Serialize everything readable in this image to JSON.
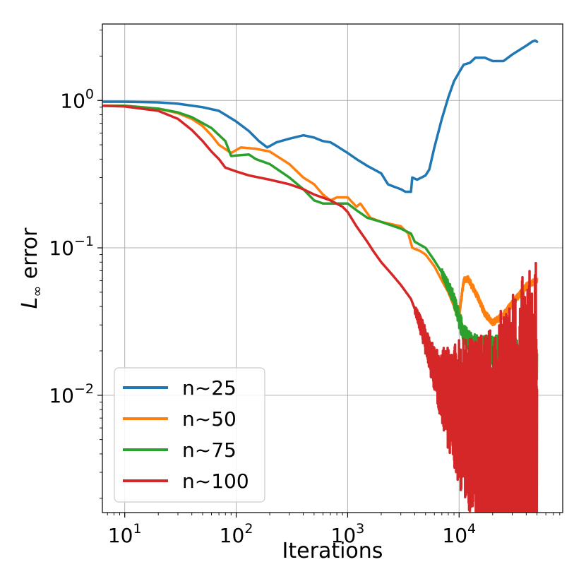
{
  "chart_data": {
    "type": "line",
    "xlabel": "Iterations",
    "ylabel": {
      "base": "L",
      "subscript": "∞",
      "suffix": " error"
    },
    "xscale": "log",
    "yscale": "log",
    "xlim": [
      6.3,
      85000
    ],
    "ylim": [
      0.0016,
      3.3
    ],
    "grid": true,
    "legend_position": "lower-left",
    "x_ticks": [
      {
        "value": 10,
        "base": "10",
        "exp": "1"
      },
      {
        "value": 100,
        "base": "10",
        "exp": "2"
      },
      {
        "value": 1000,
        "base": "10",
        "exp": "3"
      },
      {
        "value": 10000,
        "base": "10",
        "exp": "4"
      }
    ],
    "y_ticks": [
      {
        "value": 1,
        "base": "10",
        "exp": "0"
      },
      {
        "value": 0.1,
        "base": "10",
        "exp": "−1"
      },
      {
        "value": 0.01,
        "base": "10",
        "exp": "−2"
      }
    ],
    "series": [
      {
        "name": "n~25",
        "color": "#1f77b4",
        "points": [
          [
            6.5,
            0.98
          ],
          [
            10,
            0.98
          ],
          [
            20,
            0.97
          ],
          [
            30,
            0.95
          ],
          [
            50,
            0.9
          ],
          [
            70,
            0.85
          ],
          [
            100,
            0.72
          ],
          [
            130,
            0.62
          ],
          [
            160,
            0.53
          ],
          [
            190,
            0.48
          ],
          [
            230,
            0.52
          ],
          [
            300,
            0.55
          ],
          [
            400,
            0.58
          ],
          [
            450,
            0.57
          ],
          [
            500,
            0.56
          ],
          [
            600,
            0.53
          ],
          [
            700,
            0.52
          ],
          [
            800,
            0.49
          ],
          [
            1000,
            0.44
          ],
          [
            1200,
            0.4
          ],
          [
            1500,
            0.36
          ],
          [
            2000,
            0.32
          ],
          [
            2300,
            0.27
          ],
          [
            2600,
            0.26
          ],
          [
            3000,
            0.25
          ],
          [
            3300,
            0.24
          ],
          [
            3700,
            0.24
          ],
          [
            3800,
            0.3
          ],
          [
            4200,
            0.29
          ],
          [
            4600,
            0.3
          ],
          [
            5000,
            0.31
          ],
          [
            5400,
            0.34
          ],
          [
            6000,
            0.48
          ],
          [
            7000,
            0.75
          ],
          [
            8000,
            1.05
          ],
          [
            9000,
            1.35
          ],
          [
            10000,
            1.55
          ],
          [
            11000,
            1.75
          ],
          [
            12500,
            1.8
          ],
          [
            14000,
            1.95
          ],
          [
            17000,
            1.95
          ],
          [
            20000,
            1.85
          ],
          [
            25000,
            1.85
          ],
          [
            30000,
            2.05
          ],
          [
            40000,
            2.35
          ],
          [
            45000,
            2.5
          ],
          [
            48000,
            2.55
          ],
          [
            50000,
            2.5
          ]
        ]
      },
      {
        "name": "n~50",
        "color": "#ff7f0e",
        "noise": [
          [
            9000,
            1.0,
            0.04
          ],
          [
            20000,
            1.0,
            0.04
          ]
        ],
        "points": [
          [
            6.5,
            0.92
          ],
          [
            10,
            0.92
          ],
          [
            20,
            0.88
          ],
          [
            30,
            0.82
          ],
          [
            40,
            0.75
          ],
          [
            50,
            0.67
          ],
          [
            60,
            0.58
          ],
          [
            70,
            0.5
          ],
          [
            90,
            0.44
          ],
          [
            110,
            0.48
          ],
          [
            150,
            0.47
          ],
          [
            200,
            0.45
          ],
          [
            300,
            0.37
          ],
          [
            400,
            0.3
          ],
          [
            500,
            0.27
          ],
          [
            600,
            0.23
          ],
          [
            700,
            0.21
          ],
          [
            800,
            0.22
          ],
          [
            1000,
            0.22
          ],
          [
            1200,
            0.19
          ],
          [
            1300,
            0.2
          ],
          [
            1600,
            0.16
          ],
          [
            2000,
            0.15
          ],
          [
            3000,
            0.14
          ],
          [
            3500,
            0.125
          ],
          [
            3800,
            0.1
          ],
          [
            4500,
            0.095
          ],
          [
            5000,
            0.09
          ],
          [
            6000,
            0.075
          ],
          [
            7000,
            0.06
          ],
          [
            8000,
            0.05
          ],
          [
            9000,
            0.04
          ],
          [
            10000,
            0.035
          ],
          [
            11000,
            0.06
          ],
          [
            12000,
            0.062
          ],
          [
            14000,
            0.05
          ],
          [
            17000,
            0.036
          ],
          [
            20000,
            0.031
          ],
          [
            25000,
            0.035
          ],
          [
            30000,
            0.042
          ],
          [
            40000,
            0.055
          ],
          [
            50000,
            0.06
          ]
        ]
      },
      {
        "name": "n~75",
        "color": "#2ca02c",
        "noise": [
          [
            7000,
            1.0,
            0.05
          ],
          [
            10000,
            1.0,
            0.12
          ],
          [
            20000,
            1.0,
            0.2
          ],
          [
            50000,
            1.0,
            0.3
          ]
        ],
        "points": [
          [
            6.5,
            0.92
          ],
          [
            10,
            0.92
          ],
          [
            20,
            0.88
          ],
          [
            30,
            0.83
          ],
          [
            40,
            0.77
          ],
          [
            60,
            0.65
          ],
          [
            80,
            0.53
          ],
          [
            90,
            0.42
          ],
          [
            130,
            0.43
          ],
          [
            150,
            0.4
          ],
          [
            200,
            0.37
          ],
          [
            300,
            0.3
          ],
          [
            400,
            0.25
          ],
          [
            500,
            0.21
          ],
          [
            600,
            0.2
          ],
          [
            1000,
            0.2
          ],
          [
            1200,
            0.18
          ],
          [
            1500,
            0.16
          ],
          [
            2000,
            0.15
          ],
          [
            3000,
            0.135
          ],
          [
            3700,
            0.125
          ],
          [
            4000,
            0.11
          ],
          [
            5000,
            0.1
          ],
          [
            6000,
            0.082
          ],
          [
            7000,
            0.068
          ],
          [
            8000,
            0.055
          ],
          [
            9000,
            0.045
          ],
          [
            10000,
            0.033
          ],
          [
            11000,
            0.026
          ],
          [
            13000,
            0.022
          ],
          [
            15000,
            0.021
          ],
          [
            20000,
            0.02
          ],
          [
            25000,
            0.02
          ],
          [
            30000,
            0.019
          ],
          [
            40000,
            0.016
          ],
          [
            50000,
            0.015
          ]
        ]
      },
      {
        "name": "n~100",
        "color": "#d62728",
        "noise": [
          [
            4000,
            1.0,
            0.05
          ],
          [
            6000,
            1.0,
            0.3
          ],
          [
            10000,
            1.0,
            1.0
          ],
          [
            20000,
            1.0,
            1.6
          ],
          [
            30000,
            1.0,
            2.2
          ],
          [
            50000,
            1.0,
            2.6
          ]
        ],
        "points": [
          [
            6.5,
            0.92
          ],
          [
            10,
            0.91
          ],
          [
            20,
            0.85
          ],
          [
            30,
            0.75
          ],
          [
            40,
            0.63
          ],
          [
            50,
            0.53
          ],
          [
            60,
            0.45
          ],
          [
            70,
            0.4
          ],
          [
            80,
            0.35
          ],
          [
            100,
            0.33
          ],
          [
            130,
            0.31
          ],
          [
            200,
            0.29
          ],
          [
            300,
            0.27
          ],
          [
            400,
            0.25
          ],
          [
            500,
            0.23
          ],
          [
            700,
            0.21
          ],
          [
            900,
            0.19
          ],
          [
            1000,
            0.175
          ],
          [
            1200,
            0.14
          ],
          [
            1500,
            0.11
          ],
          [
            1700,
            0.095
          ],
          [
            2000,
            0.08
          ],
          [
            2500,
            0.066
          ],
          [
            3000,
            0.056
          ],
          [
            3700,
            0.045
          ],
          [
            4200,
            0.035
          ],
          [
            4800,
            0.026
          ],
          [
            5500,
            0.018
          ],
          [
            6500,
            0.013
          ],
          [
            8000,
            0.0095
          ],
          [
            10000,
            0.0075
          ],
          [
            15000,
            0.0055
          ],
          [
            20000,
            0.0047
          ],
          [
            30000,
            0.0042
          ],
          [
            50000,
            0.0042
          ]
        ]
      }
    ]
  }
}
